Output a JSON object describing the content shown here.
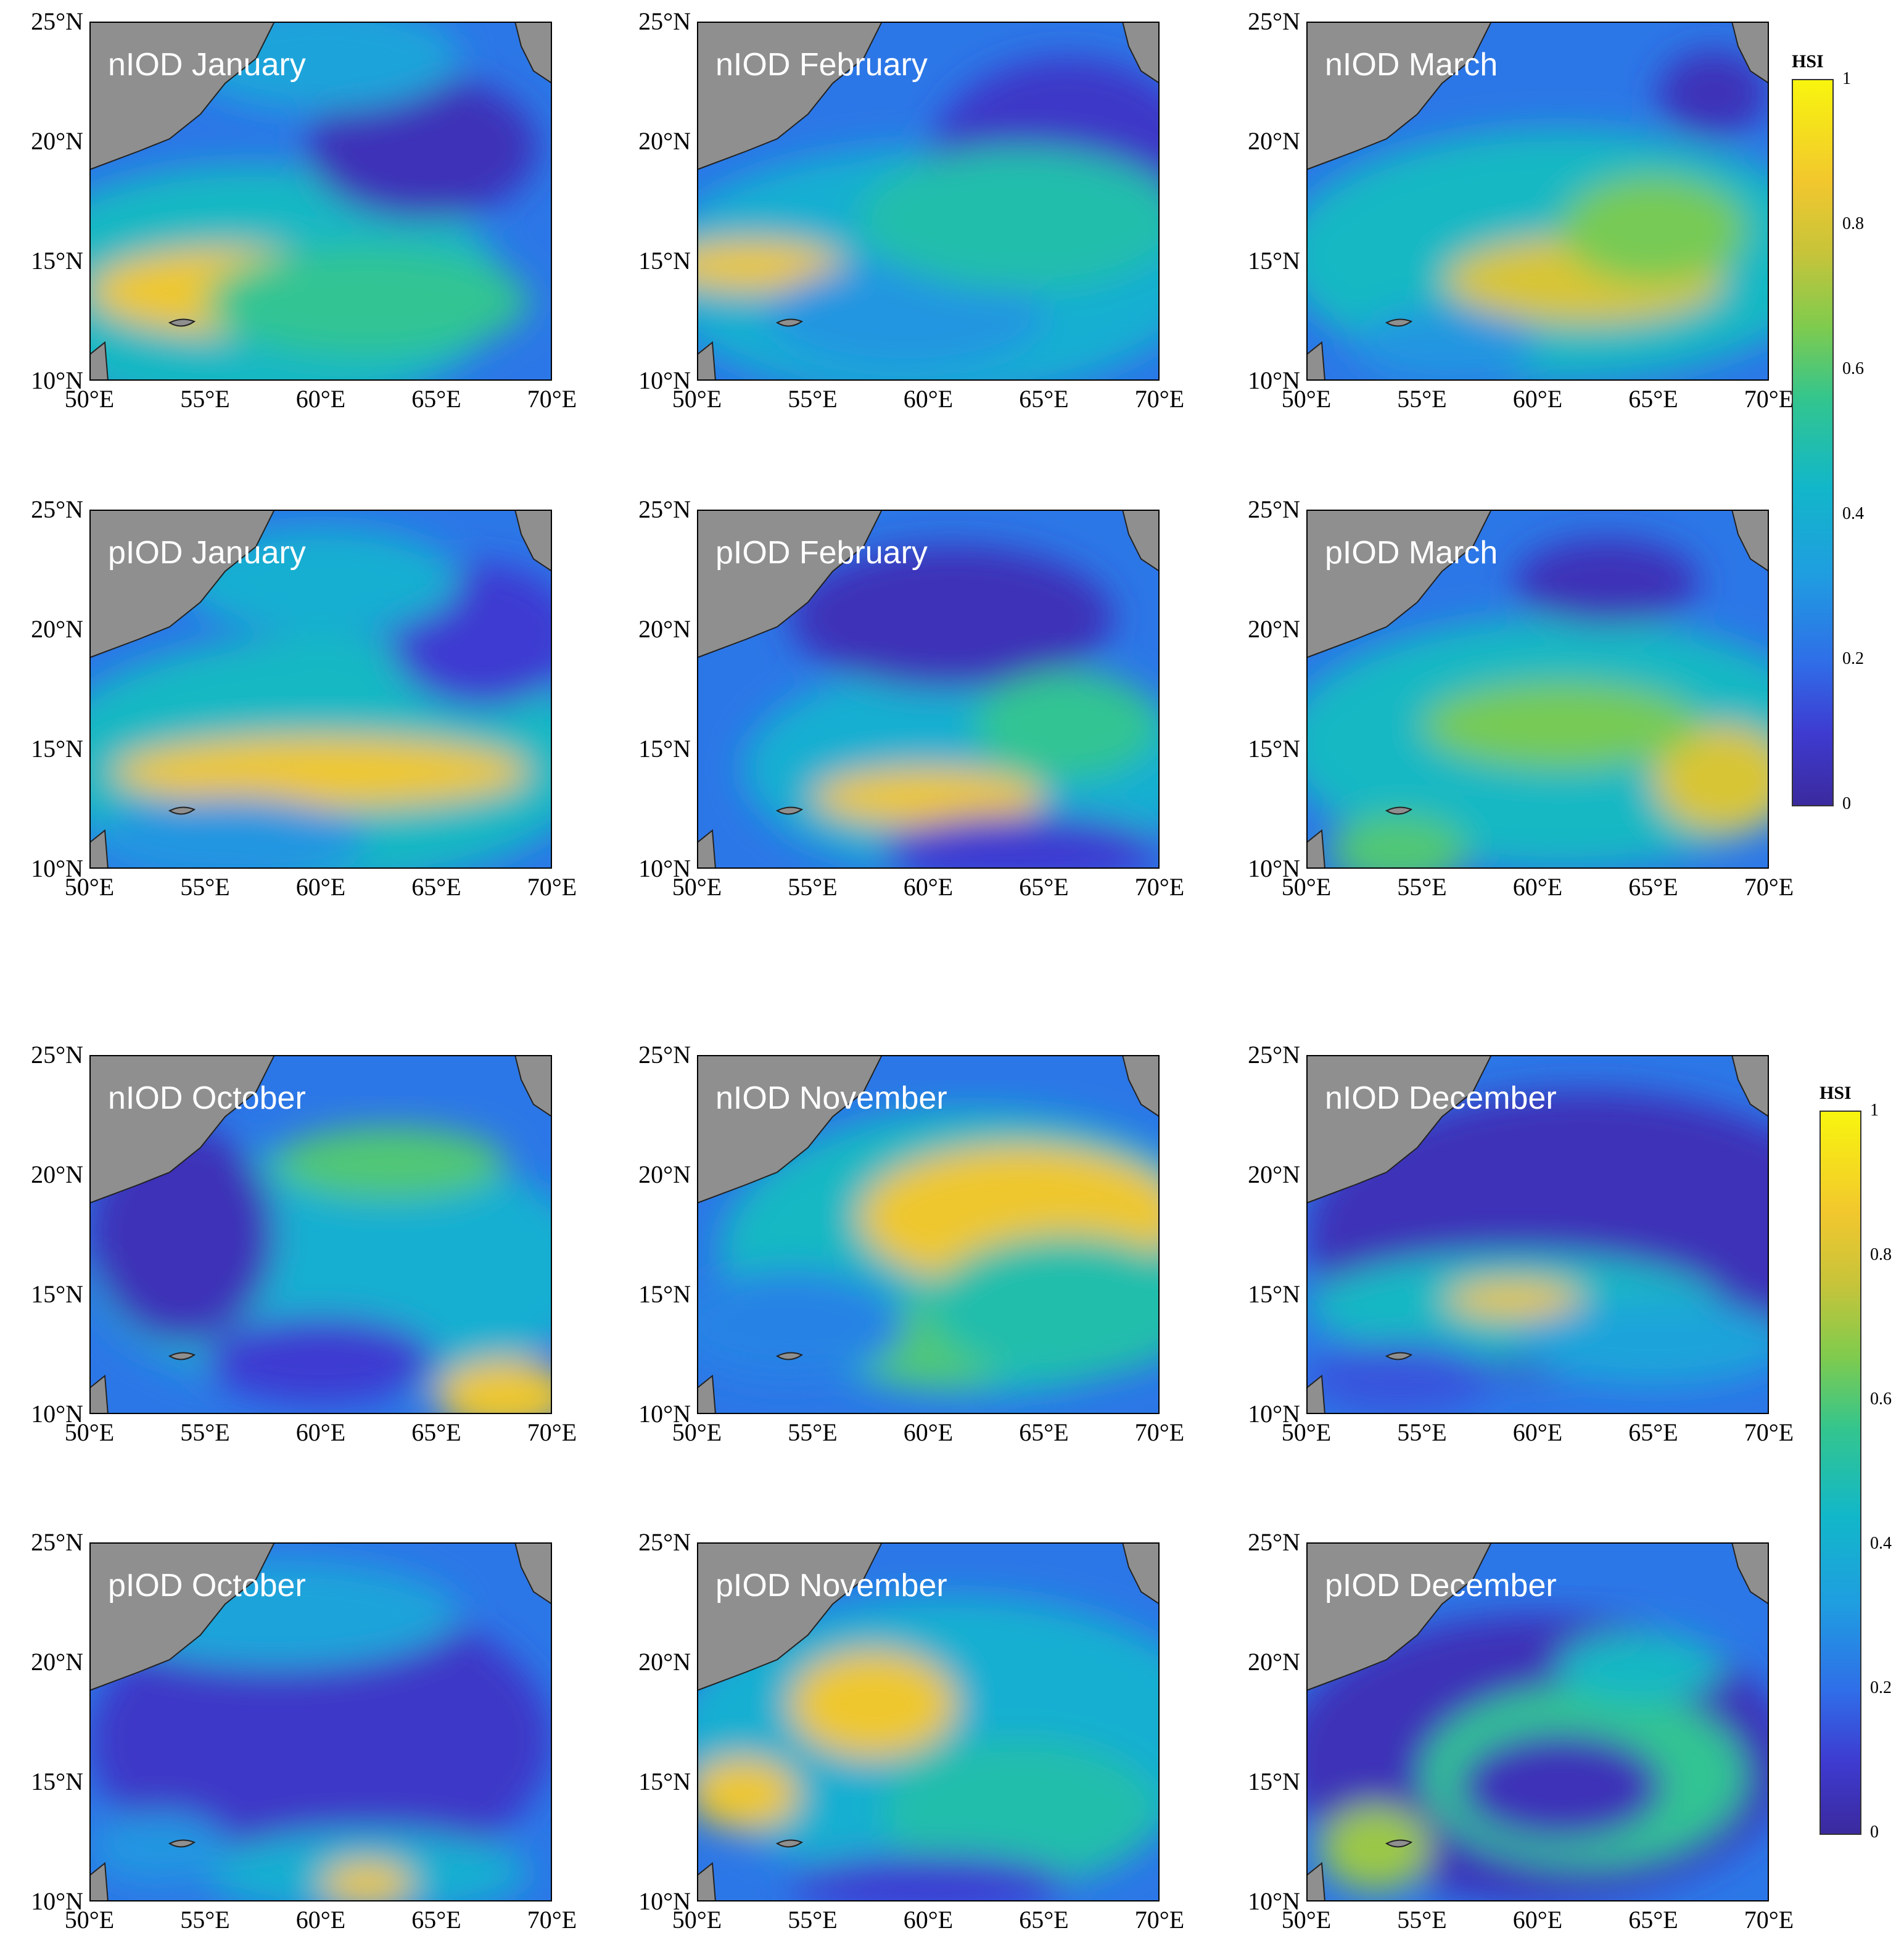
{
  "axes": {
    "y_ticks": [
      "25°N",
      "20°N",
      "15°N",
      "10°N"
    ],
    "x_ticks": [
      "50°E",
      "55°E",
      "60°E",
      "65°E",
      "70°E"
    ]
  },
  "panels": [
    {
      "title": "nIOD January"
    },
    {
      "title": "nIOD February"
    },
    {
      "title": "nIOD March"
    },
    {
      "title": "pIOD January"
    },
    {
      "title": "pIOD February"
    },
    {
      "title": "pIOD March"
    },
    {
      "title": "nIOD October"
    },
    {
      "title": "nIOD November"
    },
    {
      "title": "nIOD December"
    },
    {
      "title": "pIOD October"
    },
    {
      "title": "pIOD November"
    },
    {
      "title": "pIOD December"
    }
  ],
  "colorbars": [
    {
      "title": "HSI",
      "ticks": [
        "1",
        "0.8",
        "0.6",
        "0.4",
        "0.2",
        "0"
      ]
    },
    {
      "title": "HSI",
      "ticks": [
        "1",
        "0.8",
        "0.6",
        "0.4",
        "0.2",
        "0"
      ]
    }
  ],
  "colors": {
    "land": "#8f8f8f",
    "low": "#3b2a9e",
    "high": "#f8f50e"
  }
}
